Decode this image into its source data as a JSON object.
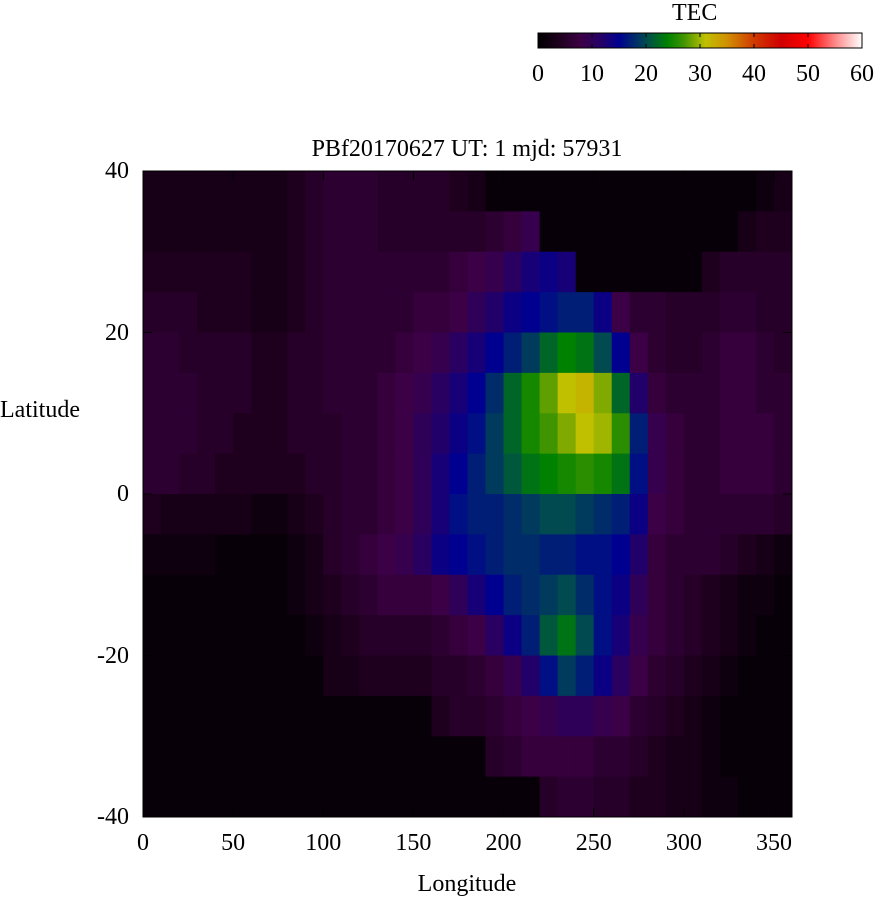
{
  "chart_data": {
    "type": "heatmap",
    "title": "PBf20170627  UT: 1  mjd: 57931",
    "xlabel": "Longitude",
    "ylabel": "Latitude",
    "xlim": [
      0,
      360
    ],
    "ylim": [
      -40,
      40
    ],
    "xticks": [
      "0",
      "50",
      "100",
      "150",
      "200",
      "250",
      "300",
      "350"
    ],
    "yticks": [
      "40",
      "20",
      "0",
      "-20",
      "-40"
    ],
    "grid": false,
    "colorbar": {
      "label": "TEC",
      "range": [
        0,
        60
      ],
      "ticks": [
        "0",
        "10",
        "20",
        "30",
        "40",
        "50",
        "60"
      ],
      "position": "top-right",
      "colormap": [
        [
          0,
          "#000000"
        ],
        [
          4,
          "#1e001e"
        ],
        [
          8,
          "#3c0046"
        ],
        [
          12,
          "#22006a"
        ],
        [
          15,
          "#000090"
        ],
        [
          20,
          "#004a50"
        ],
        [
          24,
          "#008200"
        ],
        [
          27,
          "#409400"
        ],
        [
          31,
          "#c0c000"
        ],
        [
          35,
          "#d09000"
        ],
        [
          40,
          "#d03a00"
        ],
        [
          45,
          "#d00000"
        ],
        [
          50,
          "#ff0000"
        ],
        [
          55,
          "#ff8888"
        ],
        [
          60,
          "#ffffff"
        ]
      ]
    },
    "lon_centers": [
      5,
      15,
      25,
      35,
      45,
      55,
      65,
      75,
      85,
      95,
      105,
      115,
      125,
      135,
      145,
      155,
      165,
      175,
      185,
      195,
      205,
      215,
      225,
      235,
      245,
      255,
      265,
      275,
      285,
      295,
      305,
      315,
      325,
      335,
      345,
      355
    ],
    "lat_centers": [
      37.5,
      32.5,
      27.5,
      22.5,
      17.5,
      12.5,
      7.5,
      2.5,
      -2.5,
      -7.5,
      -12.5,
      -17.5,
      -22.5,
      -27.5,
      -32.5,
      -37.5
    ],
    "values": [
      [
        3,
        3,
        3,
        3,
        3,
        3,
        3,
        3,
        4,
        5,
        6,
        6,
        6,
        5,
        5,
        5,
        5,
        4,
        3,
        1,
        1,
        1,
        1,
        1,
        1,
        1,
        1,
        1,
        1,
        1,
        1,
        1,
        1,
        1,
        2,
        3
      ],
      [
        3,
        3,
        3,
        3,
        3,
        3,
        3,
        3,
        4,
        5,
        6,
        6,
        6,
        5,
        5,
        5,
        5,
        5,
        5,
        6,
        7,
        9,
        1,
        1,
        1,
        1,
        1,
        1,
        1,
        1,
        1,
        1,
        1,
        3,
        4,
        4
      ],
      [
        4,
        4,
        4,
        4,
        4,
        4,
        3,
        3,
        4,
        5,
        6,
        6,
        6,
        6,
        6,
        6,
        6,
        7,
        8,
        9,
        11,
        13,
        14,
        13,
        1,
        1,
        1,
        1,
        1,
        1,
        1,
        4,
        5,
        5,
        5,
        5
      ],
      [
        5,
        5,
        5,
        4,
        4,
        4,
        3,
        3,
        4,
        5,
        6,
        6,
        6,
        6,
        6,
        7,
        7,
        8,
        10,
        12,
        14,
        15,
        16,
        17,
        17,
        14,
        8,
        6,
        6,
        5,
        5,
        5,
        6,
        6,
        5,
        5
      ],
      [
        6,
        6,
        5,
        5,
        5,
        5,
        4,
        4,
        5,
        5,
        6,
        6,
        6,
        6,
        7,
        8,
        9,
        11,
        13,
        15,
        17,
        19,
        22,
        24,
        23,
        20,
        15,
        8,
        6,
        5,
        5,
        6,
        7,
        7,
        6,
        5
      ],
      [
        6,
        6,
        6,
        5,
        5,
        5,
        4,
        4,
        5,
        5,
        6,
        6,
        6,
        7,
        8,
        9,
        11,
        13,
        15,
        18,
        22,
        25,
        28,
        31,
        32,
        29,
        22,
        12,
        7,
        6,
        6,
        6,
        7,
        7,
        6,
        6
      ],
      [
        6,
        6,
        6,
        5,
        5,
        4,
        4,
        4,
        5,
        5,
        5,
        6,
        6,
        7,
        8,
        10,
        12,
        14,
        16,
        19,
        22,
        25,
        27,
        29,
        31,
        30,
        26,
        17,
        9,
        7,
        6,
        6,
        7,
        7,
        7,
        6
      ],
      [
        6,
        6,
        5,
        5,
        4,
        4,
        4,
        4,
        4,
        5,
        5,
        6,
        6,
        7,
        8,
        10,
        13,
        15,
        17,
        19,
        21,
        23,
        24,
        25,
        26,
        25,
        23,
        16,
        9,
        7,
        6,
        6,
        7,
        7,
        7,
        6
      ],
      [
        4,
        3,
        3,
        3,
        3,
        3,
        2,
        2,
        3,
        4,
        5,
        6,
        6,
        7,
        8,
        10,
        13,
        16,
        17,
        17,
        18,
        19,
        20,
        20,
        19,
        18,
        17,
        14,
        8,
        7,
        6,
        6,
        6,
        6,
        6,
        5
      ],
      [
        2,
        2,
        2,
        2,
        1,
        1,
        1,
        1,
        2,
        3,
        5,
        6,
        7,
        8,
        9,
        11,
        14,
        15,
        16,
        17,
        18,
        18,
        17,
        17,
        16,
        16,
        15,
        12,
        7,
        6,
        6,
        6,
        5,
        4,
        3,
        2
      ],
      [
        1,
        1,
        1,
        1,
        1,
        1,
        1,
        1,
        2,
        3,
        4,
        5,
        6,
        7,
        7,
        7,
        8,
        10,
        13,
        15,
        17,
        18,
        19,
        20,
        18,
        16,
        14,
        10,
        7,
        6,
        5,
        4,
        3,
        2,
        2,
        1
      ],
      [
        1,
        1,
        1,
        1,
        1,
        1,
        1,
        1,
        1,
        2,
        3,
        4,
        5,
        5,
        5,
        5,
        6,
        7,
        8,
        11,
        14,
        17,
        21,
        23,
        20,
        16,
        13,
        9,
        7,
        6,
        5,
        4,
        3,
        2,
        1,
        1
      ],
      [
        1,
        1,
        1,
        1,
        1,
        1,
        1,
        1,
        1,
        1,
        3,
        3,
        4,
        4,
        4,
        4,
        5,
        5,
        6,
        7,
        9,
        12,
        16,
        19,
        17,
        14,
        11,
        8,
        6,
        5,
        4,
        3,
        2,
        1,
        1,
        1
      ],
      [
        1,
        1,
        1,
        1,
        1,
        1,
        1,
        1,
        1,
        1,
        1,
        1,
        1,
        1,
        1,
        1,
        4,
        5,
        5,
        6,
        7,
        8,
        9,
        10,
        10,
        9,
        8,
        6,
        5,
        4,
        3,
        2,
        1,
        1,
        1,
        1
      ],
      [
        1,
        1,
        1,
        1,
        1,
        1,
        1,
        1,
        1,
        1,
        1,
        1,
        1,
        1,
        1,
        1,
        1,
        1,
        1,
        5,
        6,
        7,
        7,
        7,
        7,
        6,
        6,
        5,
        4,
        3,
        3,
        2,
        1,
        1,
        1,
        1
      ],
      [
        1,
        1,
        1,
        1,
        1,
        1,
        1,
        1,
        1,
        1,
        1,
        1,
        1,
        1,
        1,
        1,
        1,
        1,
        1,
        1,
        1,
        1,
        5,
        6,
        6,
        5,
        5,
        4,
        4,
        3,
        3,
        2,
        2,
        1,
        1,
        1
      ]
    ]
  }
}
